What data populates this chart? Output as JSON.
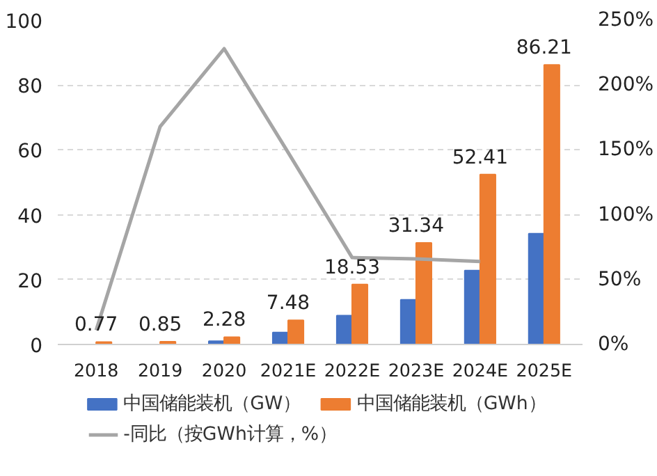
{
  "chart_data": {
    "type": "bar",
    "categories": [
      "2018",
      "2019",
      "2020",
      "2021E",
      "2022E",
      "2023E",
      "2024E",
      "2025E"
    ],
    "series": [
      {
        "name": "中国储能装机（GW）",
        "color": "#4472c4",
        "values": [
          null,
          null,
          1.0,
          3.7,
          8.9,
          13.8,
          22.8,
          34.2
        ]
      },
      {
        "name": "中国储能装机（GWh）",
        "color": "#ed7d31",
        "values": [
          0.77,
          0.85,
          2.28,
          7.48,
          18.53,
          31.34,
          52.41,
          86.21
        ],
        "value_labels": [
          "0.77",
          "0.85",
          "2.28",
          "7.48",
          "18.53",
          "31.34",
          "52.41",
          "86.21"
        ]
      },
      {
        "name": "-同比（按GWh计算，%）",
        "color": "#a5a5a5",
        "type": "line",
        "axis": "y2",
        "values": [
          11,
          168,
          228,
          148,
          67,
          66,
          64,
          null
        ]
      }
    ],
    "ylim": [
      0,
      100
    ],
    "yticks": [
      0,
      20,
      40,
      60,
      80,
      100
    ],
    "y2lim": [
      0,
      250
    ],
    "y2ticks": [
      {
        "value": 0,
        "label": "0%"
      },
      {
        "value": 50,
        "label": "50%"
      },
      {
        "value": 100,
        "label": "100%"
      },
      {
        "value": 150,
        "label": "150%"
      },
      {
        "value": 200,
        "label": "200%"
      },
      {
        "value": 250,
        "label": "250%"
      }
    ],
    "grid": "y",
    "legend": "bottom",
    "marker": "none",
    "line_style": "solid"
  }
}
